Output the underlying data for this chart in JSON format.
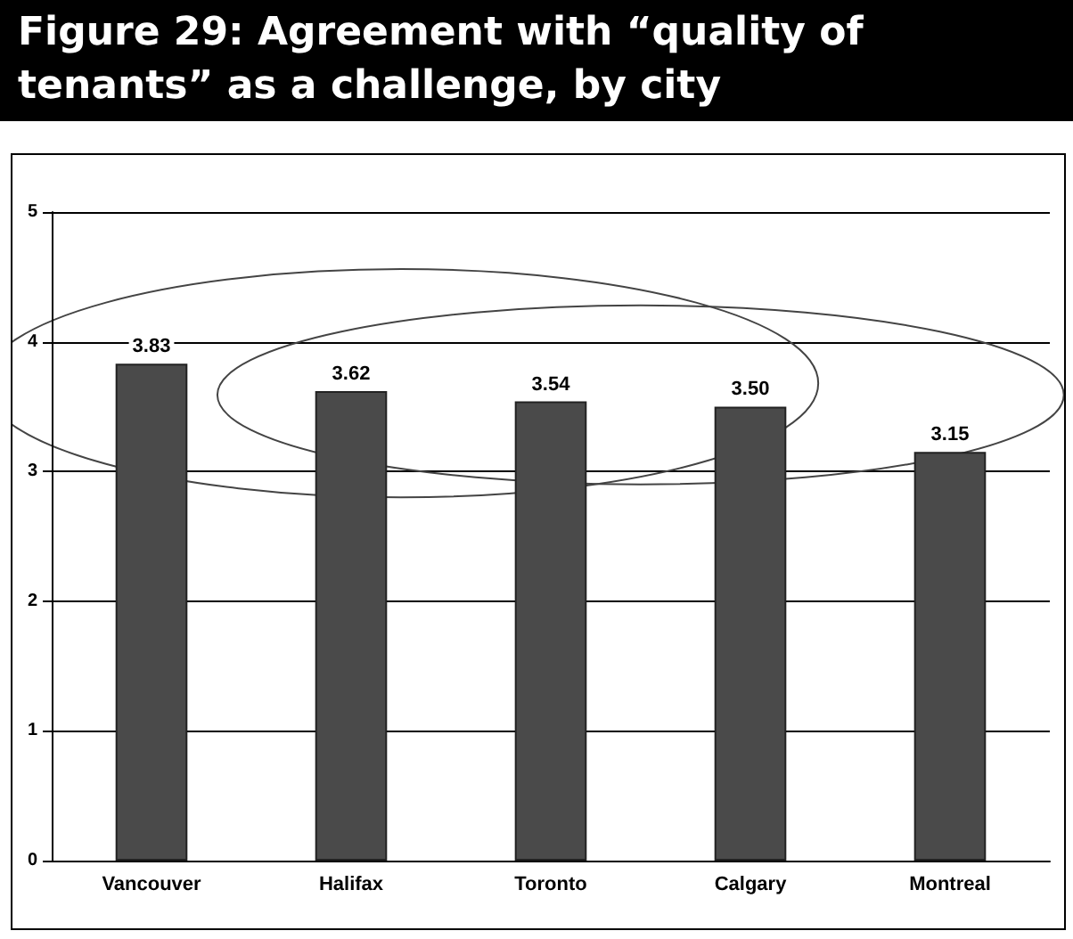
{
  "chart_data": {
    "type": "bar",
    "title": "Figure 29: Agreement with “quality of tenants” as a challenge, by city",
    "categories": [
      "Vancouver",
      "Halifax",
      "Toronto",
      "Calgary",
      "Montreal"
    ],
    "values": [
      3.83,
      3.62,
      3.54,
      3.5,
      3.15
    ],
    "color": "#4a4a4a",
    "value_labels": [
      "3.83",
      "3.62",
      "3.54",
      "3.50",
      "3.15"
    ],
    "ylim": [
      0,
      5
    ],
    "yticks": [
      0,
      1,
      2,
      3,
      4,
      5
    ],
    "grid": "y"
  }
}
